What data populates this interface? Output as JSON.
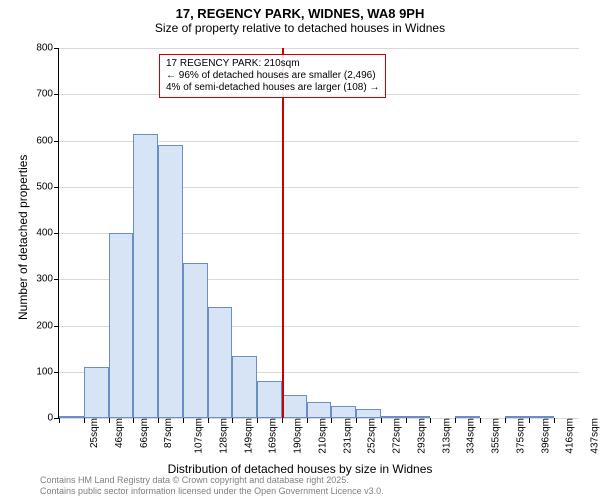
{
  "title": "17, REGENCY PARK, WIDNES, WA8 9PH",
  "subtitle": "Size of property relative to detached houses in Widnes",
  "ylabel": "Number of detached properties",
  "xlabel": "Distribution of detached houses by size in Widnes",
  "footer_line1": "Contains HM Land Registry data © Crown copyright and database right 2025.",
  "footer_line2": "Contains public sector information licensed under the Open Government Licence v3.0.",
  "annotation": {
    "line1": "17 REGENCY PARK: 210sqm",
    "line2": "← 96% of detached houses are smaller (2,496)",
    "line3": "4% of semi-detached houses are larger (108) →",
    "border_color": "#cc0000",
    "fontsize": 10
  },
  "chart": {
    "type": "histogram",
    "ylim": [
      0,
      800
    ],
    "ytick_step": 100,
    "yticks": [
      0,
      100,
      200,
      300,
      400,
      500,
      600,
      700,
      800
    ],
    "xticks": [
      "25sqm",
      "46sqm",
      "66sqm",
      "87sqm",
      "107sqm",
      "128sqm",
      "149sqm",
      "169sqm",
      "190sqm",
      "210sqm",
      "231sqm",
      "252sqm",
      "272sqm",
      "293sqm",
      "313sqm",
      "334sqm",
      "355sqm",
      "375sqm",
      "396sqm",
      "416sqm",
      "437sqm"
    ],
    "values": [
      5,
      110,
      400,
      615,
      590,
      335,
      240,
      135,
      80,
      50,
      35,
      25,
      20,
      5,
      3,
      0,
      3,
      0,
      3,
      5,
      0
    ],
    "bar_fill": "#d6e4f5",
    "bar_border": "#6b8fc4",
    "grid_color": "#d9d9d9",
    "background_color": "#ffffff",
    "marker_color": "#cc0000",
    "marker_index": 9,
    "title_fontsize": 13,
    "subtitle_fontsize": 12,
    "label_fontsize": 12,
    "tick_fontsize": 10,
    "footer_fontsize": 9,
    "footer_color": "#808080"
  }
}
